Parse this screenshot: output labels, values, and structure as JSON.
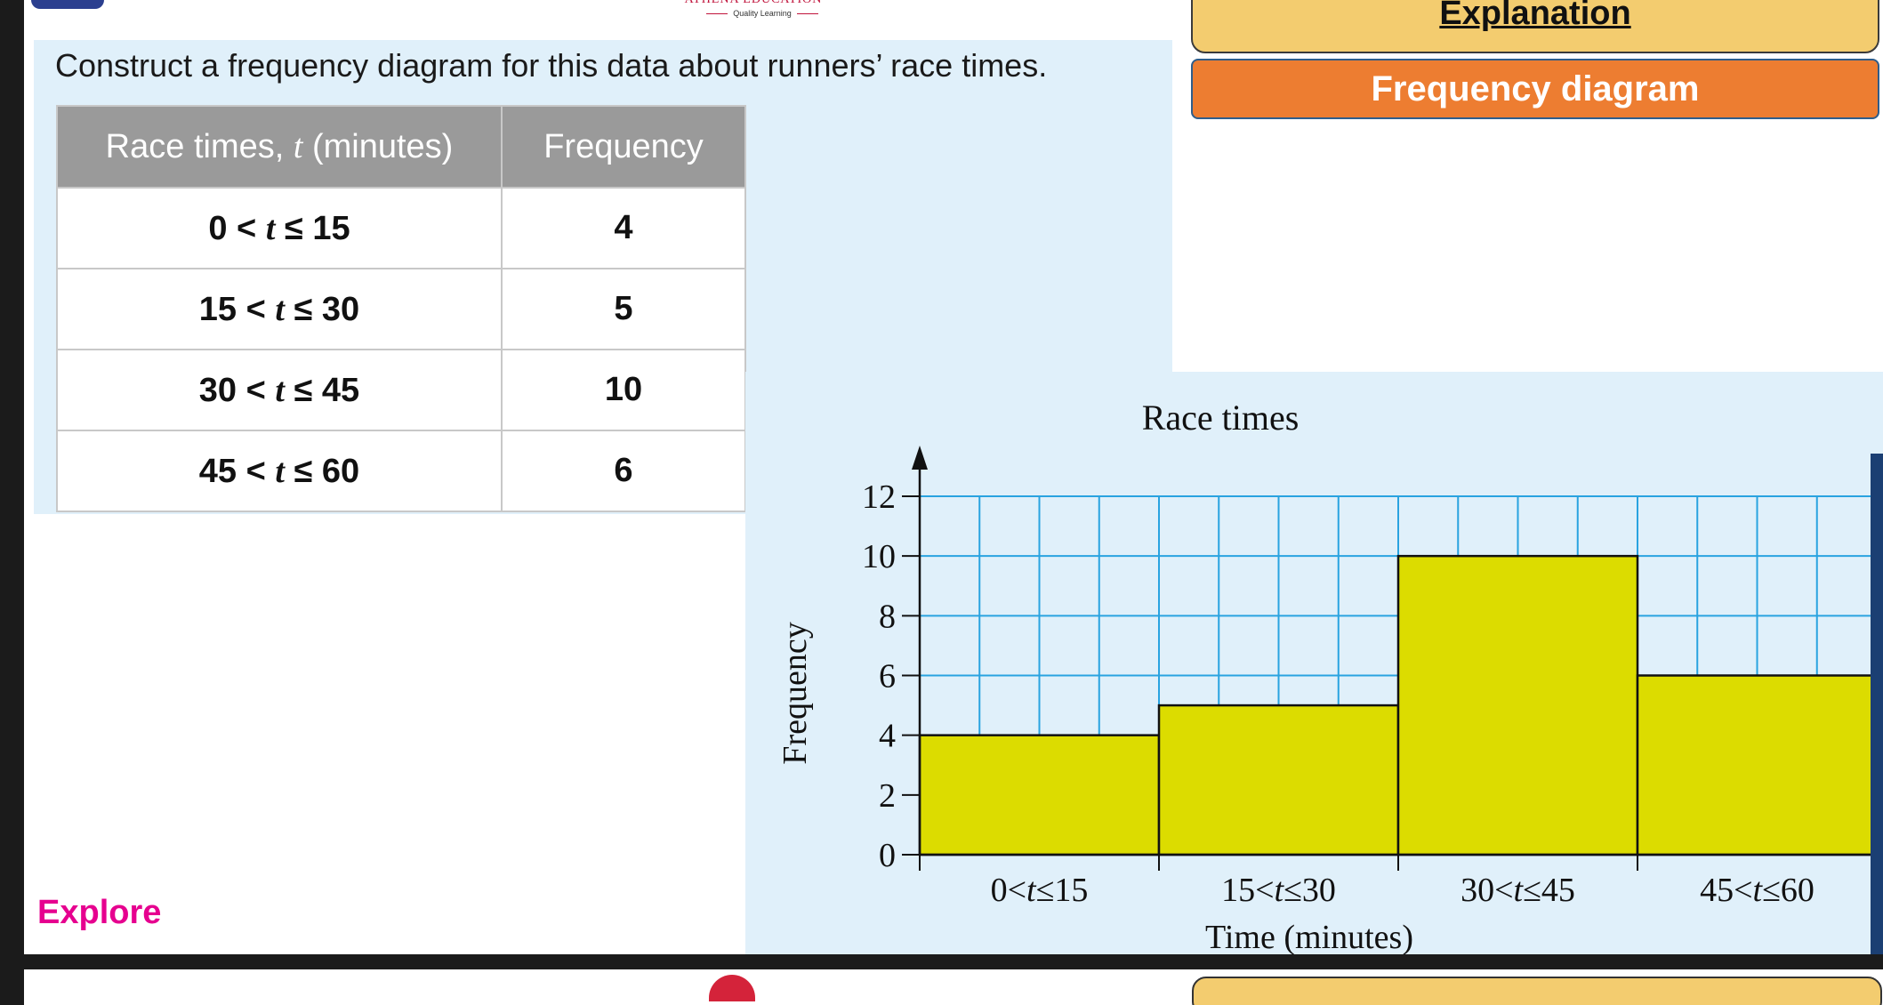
{
  "brand": {
    "name": "ATHENA EDUCATION",
    "tagline": "Quality Learning"
  },
  "question": "Construct a frequency diagram for this data about runners’ race times.",
  "table": {
    "headers": [
      "Race times, t (minutes)",
      "Frequency"
    ],
    "rows": [
      {
        "range": "0 < t ≤ 15",
        "frequency": "4"
      },
      {
        "range": "15 < t ≤ 30",
        "frequency": "5"
      },
      {
        "range": "30 < t ≤ 45",
        "frequency": "10"
      },
      {
        "range": "45 < t ≤ 60",
        "frequency": "6"
      }
    ]
  },
  "tabs": {
    "explanation": "Explanation",
    "frequency_diagram": "Frequency diagram"
  },
  "explore_label": "Explore",
  "chart_data": {
    "type": "bar",
    "title": "Race times",
    "xlabel": "Time (minutes)",
    "ylabel": "Frequency",
    "categories": [
      "0<t≤15",
      "15<t≤30",
      "30<t≤45",
      "45<t≤60"
    ],
    "values": [
      4,
      5,
      10,
      6
    ],
    "ylim": [
      0,
      12
    ],
    "yticks": [
      0,
      2,
      4,
      6,
      8,
      10,
      12
    ],
    "grid": true,
    "bar_color": "#dcdc00",
    "grid_color": "#29a3e0"
  }
}
